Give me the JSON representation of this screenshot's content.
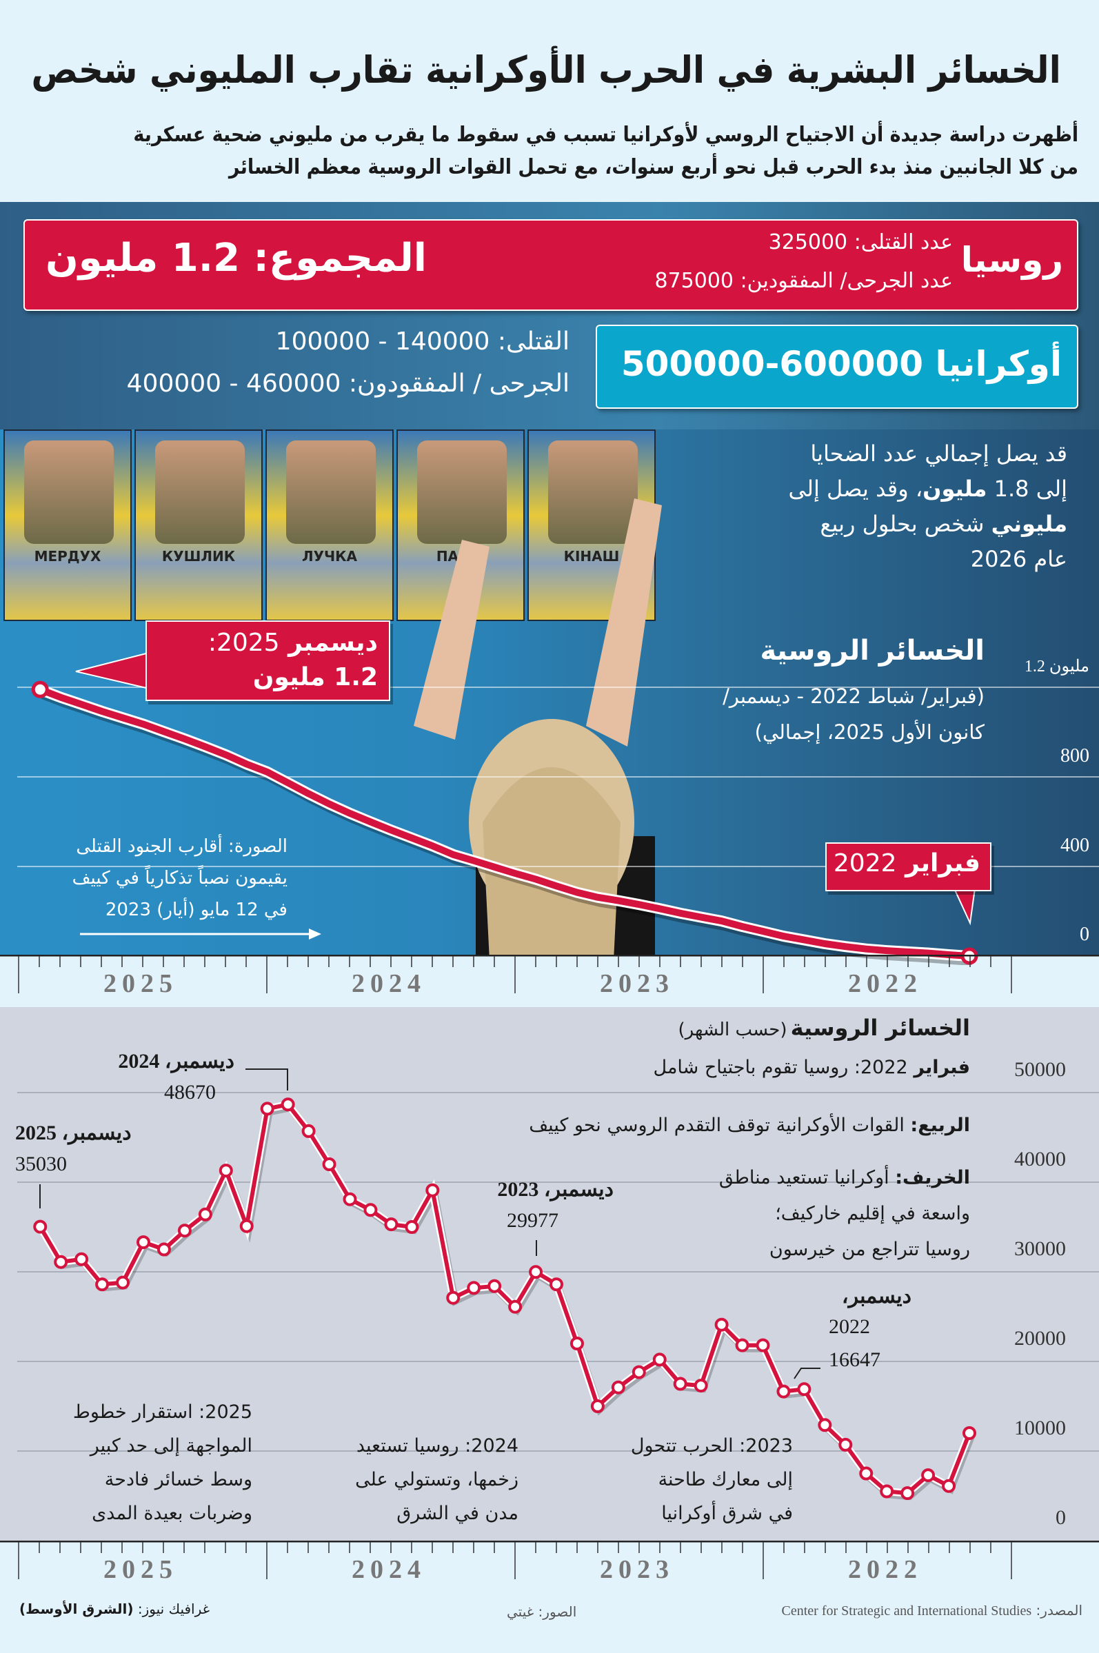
{
  "header": {
    "title": "الخسائر البشرية في الحرب الأوكرانية تقارب المليوني شخص",
    "subtitle_lines": [
      "أظهرت دراسة جديدة أن الاجتياح الروسي لأوكرانيا تسبب في سقوط ما يقرب من مليوني ضحية عسكرية",
      "من كلا الجانبين منذ بدء الحرب قبل نحو أربع سنوات، مع تحمل القوات الروسية معظم الخسائر"
    ]
  },
  "russia": {
    "label": "روسيا",
    "killed_label": "عدد القتلى:",
    "killed": "325000",
    "wounded_label": "عدد الجرحى/ المفقودين:",
    "wounded": "875000",
    "total_label": "المجموع:",
    "total": "1.2 مليون"
  },
  "ukraine": {
    "label": "أوكرانيا",
    "range": "600000-500000",
    "killed_label": "القتلى:",
    "killed": "140000 - 100000",
    "wounded_label": "الجرحى / المفقودون:",
    "wounded": "460000 - 400000"
  },
  "projection": {
    "line1": "قد يصل إجمالي عدد الضحايا",
    "line2_a": "إلى 1.8 ",
    "line2_b": "مليون",
    "line2_c": "، وقد يصل إلى",
    "line3_a": "مليوني",
    "line3_b": " شخص بحلول ربيع",
    "line4": "عام 2026"
  },
  "photo": {
    "plaques": [
      "МЕРДУХ",
      "КУШЛИК",
      "ЛУЧКА",
      "ПАСЮ",
      "КІНАШ"
    ],
    "caption_lines": [
      "الصورة: أقارب الجنود القتلى",
      "يقيمون نصباً تذكارياً في كييف",
      "في 12 مايو (أيار) 2023"
    ]
  },
  "colors": {
    "russia": "#d4143f",
    "ukraine": "#0aa6cb",
    "line": "#d4143f"
  },
  "chart_data": [
    {
      "type": "line",
      "title": "الخسائر الروسية",
      "subtitle_lines": [
        "(فبراير/ شباط 2022 - ديسمبر/",
        "كانون الأول 2025، إجمالي)"
      ],
      "y_ticks": [
        "0",
        "400",
        "800",
        "1.2 مليون"
      ],
      "ylim": [
        0,
        1200000
      ],
      "grid": true,
      "x_ticks": [
        "2025",
        "2024",
        "2023",
        "2022"
      ],
      "points": [
        {
          "x": "2022-02",
          "y": 0
        },
        {
          "x": "2025-12",
          "y": 1200000
        }
      ],
      "callouts": {
        "end_a": "ديسمبر",
        "end_b": "2025:",
        "end_c": "1.2 مليون",
        "start_a": "فبراير",
        "start_b": "2022"
      }
    },
    {
      "type": "line",
      "title": "الخسائر الروسية",
      "title_note": "(حسب الشهر)",
      "y_ticks": [
        "0",
        "10000",
        "20000",
        "30000",
        "40000",
        "50000"
      ],
      "ylim": [
        0,
        50000
      ],
      "grid": true,
      "x_ticks": [
        "2025",
        "2024",
        "2023",
        "2022"
      ],
      "x": [
        "2022-03",
        "2022-04",
        "2022-05",
        "2022-06",
        "2022-07",
        "2022-08",
        "2022-09",
        "2022-10",
        "2022-11",
        "2022-12",
        "2023-01",
        "2023-02",
        "2023-03",
        "2023-04",
        "2023-05",
        "2023-06",
        "2023-07",
        "2023-08",
        "2023-09",
        "2023-10",
        "2023-11",
        "2023-12",
        "2024-01",
        "2024-02",
        "2024-03",
        "2024-04",
        "2024-05",
        "2024-06",
        "2024-07",
        "2024-08",
        "2024-09",
        "2024-10",
        "2024-11",
        "2024-12",
        "2025-01",
        "2025-02",
        "2025-03",
        "2025-04",
        "2025-05",
        "2025-06",
        "2025-07",
        "2025-08",
        "2025-09",
        "2025-10",
        "2025-11",
        "2025-12"
      ],
      "values": [
        12000,
        6100,
        7300,
        5300,
        5500,
        7500,
        10700,
        12900,
        16900,
        16647,
        21800,
        21800,
        24100,
        17300,
        17500,
        20200,
        18800,
        17100,
        15000,
        22000,
        28600,
        29977,
        26100,
        28400,
        28200,
        27100,
        39100,
        35000,
        35300,
        36900,
        38100,
        42000,
        45700,
        48670,
        48200,
        35100,
        41300,
        36400,
        34600,
        32500,
        33300,
        28800,
        28600,
        31400,
        31100,
        35030
      ],
      "labels": {
        "dec2024_a": "ديسمبر، 2024",
        "dec2024_b": "48670",
        "dec2025_a": "ديسمبر، 2025",
        "dec2025_b": "35030",
        "dec2023_a": "ديسمبر، 2023",
        "dec2023_b": "29977",
        "dec2022_a": "ديسمبر،",
        "dec2022_b": "2022",
        "dec2022_c": "16647"
      },
      "events": [
        {
          "bold": "فبراير",
          "text": " 2022: روسيا تقوم باجتياح شامل"
        },
        {
          "bold": "الربيع:",
          "text": " القوات الأوكرانية توقف التقدم الروسي نحو كييف"
        },
        {
          "bold": "الخريف:",
          "text": " أوكرانيا تستعيد مناطق",
          "more": [
            "واسعة في إقليم خاركيف؛",
            "روسيا تتراجع من خيرسون"
          ]
        }
      ],
      "notes": [
        {
          "lines": [
            "2025: استقرار خطوط",
            "المواجهة إلى حد كبير",
            "وسط خسائر فادحة",
            "وضربات بعيدة المدى"
          ]
        },
        {
          "lines": [
            "2024: روسيا تستعيد",
            "زخمها، وتستولي على",
            "مدن في الشرق"
          ]
        },
        {
          "lines": [
            "2023: الحرب تتحول",
            "إلى معارك طاحنة",
            "في شرق أوكرانيا"
          ]
        }
      ]
    }
  ],
  "footer": {
    "source_label": "المصدر:",
    "source": "Center for Strategic and International Studies",
    "photos": "الصور: غيتي",
    "graphic_label": "غرافيك نيوز:",
    "brand": "(الشرق الأوسط)"
  }
}
